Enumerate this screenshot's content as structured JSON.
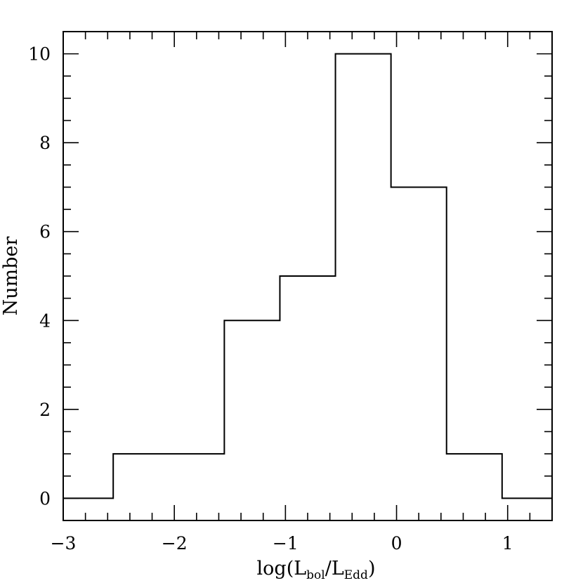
{
  "chart_data": {
    "type": "histogram",
    "title": "",
    "xlabel": {
      "prefix": "log(L",
      "sub1": "bol",
      "middle": "/L",
      "sub2": "Edd",
      "suffix": ")"
    },
    "ylabel": "Number",
    "xlim": [
      -3,
      1.4
    ],
    "ylim": [
      -0.5,
      10.5
    ],
    "xticks": [
      {
        "value": -3,
        "label": "−3"
      },
      {
        "value": -2,
        "label": "−2"
      },
      {
        "value": -1,
        "label": "−1"
      },
      {
        "value": 0,
        "label": "0"
      },
      {
        "value": 1,
        "label": "1"
      }
    ],
    "yticks": [
      {
        "value": 0,
        "label": "0"
      },
      {
        "value": 2,
        "label": "2"
      },
      {
        "value": 4,
        "label": "4"
      },
      {
        "value": 6,
        "label": "6"
      },
      {
        "value": 8,
        "label": "8"
      },
      {
        "value": 10,
        "label": "10"
      }
    ],
    "x_minor_step": 0.2,
    "y_minor_step": 0.5,
    "bins": [
      {
        "x0": -3.0,
        "x1": -2.55,
        "count": 0
      },
      {
        "x0": -2.55,
        "x1": -1.55,
        "count": 1
      },
      {
        "x0": -1.55,
        "x1": -1.05,
        "count": 4
      },
      {
        "x0": -1.05,
        "x1": -0.55,
        "count": 5
      },
      {
        "x0": -0.55,
        "x1": -0.05,
        "count": 10
      },
      {
        "x0": -0.05,
        "x1": 0.45,
        "count": 7
      },
      {
        "x0": 0.45,
        "x1": 0.95,
        "count": 1
      },
      {
        "x0": 0.95,
        "x1": 1.4,
        "count": 0
      }
    ],
    "grid": false,
    "line_color": "#000000"
  }
}
